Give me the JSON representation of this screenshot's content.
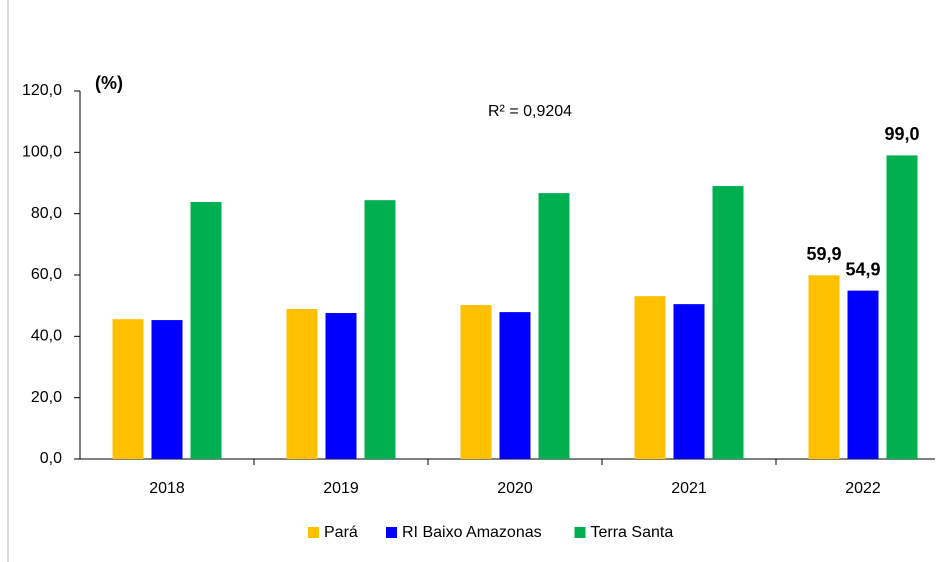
{
  "chart_data": {
    "type": "bar",
    "y_unit": "(%)",
    "annotation": "R² = 0,9204",
    "categories": [
      "2018",
      "2019",
      "2020",
      "2021",
      "2022"
    ],
    "series": [
      {
        "name": "Pará",
        "color": "#FFC000",
        "values": [
          45.6,
          48.9,
          50.2,
          53.1,
          59.9
        ],
        "value_labels": [
          null,
          null,
          null,
          null,
          "59,9"
        ]
      },
      {
        "name": "RI Baixo Amazonas",
        "color": "#0000FF",
        "values": [
          45.3,
          47.6,
          47.9,
          50.5,
          54.9
        ],
        "value_labels": [
          null,
          null,
          null,
          null,
          "54,9"
        ]
      },
      {
        "name": "Terra Santa",
        "color": "#00B050",
        "values": [
          83.8,
          84.4,
          86.7,
          89.0,
          99.0
        ],
        "value_labels": [
          null,
          null,
          null,
          null,
          "99,0"
        ]
      }
    ],
    "ylim": [
      0,
      120
    ],
    "yticks": [
      {
        "value": 0,
        "label": "0,0"
      },
      {
        "value": 20,
        "label": "20,0"
      },
      {
        "value": 40,
        "label": "40,0"
      },
      {
        "value": 60,
        "label": "60,0"
      },
      {
        "value": 80,
        "label": "80,0"
      },
      {
        "value": 100,
        "label": "100,0"
      },
      {
        "value": 120,
        "label": "120,0"
      }
    ],
    "grid": false
  }
}
